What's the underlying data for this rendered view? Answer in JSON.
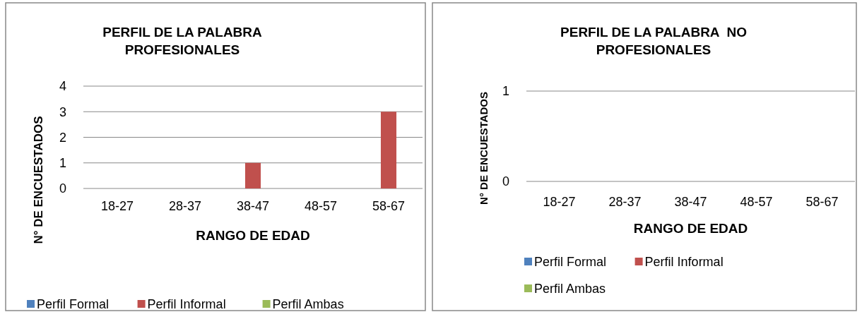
{
  "chart_data": [
    {
      "type": "bar",
      "title": "PERFIL DE LA PALABRA PROFESIONALES",
      "xlabel": "RANGO DE EDAD",
      "ylabel": "N° DE ENCUESTADOS",
      "categories": [
        "18-27",
        "28-37",
        "38-47",
        "48-57",
        "58-67"
      ],
      "series": [
        {
          "name": "Perfil Formal",
          "color": "#4f81bd",
          "values": [
            0,
            0,
            0,
            0,
            0
          ]
        },
        {
          "name": "Perfil Informal",
          "color": "#c0504d",
          "values": [
            0,
            0,
            1,
            0,
            3
          ]
        },
        {
          "name": "Perfil Ambas",
          "color": "#9bbb59",
          "values": [
            0,
            0,
            0,
            0,
            0
          ]
        }
      ],
      "ylim": [
        0,
        4
      ],
      "yticks": [
        0,
        1,
        2,
        3,
        4
      ],
      "grid": "y",
      "legend": "bottom"
    },
    {
      "type": "bar",
      "title": "PERFIL DE LA PALABRA  NO PROFESIONALES",
      "xlabel": "RANGO DE EDAD",
      "ylabel": "N° DE ENCUESTADOS",
      "categories": [
        "18-27",
        "28-37",
        "38-47",
        "48-57",
        "58-67"
      ],
      "series": [
        {
          "name": "Perfil Formal",
          "color": "#4f81bd",
          "values": [
            0,
            0,
            0,
            0,
            0
          ]
        },
        {
          "name": "Perfil Informal",
          "color": "#c0504d",
          "values": [
            0,
            0,
            0,
            0,
            0
          ]
        },
        {
          "name": "Perfil Ambas",
          "color": "#9bbb59",
          "values": [
            0,
            0,
            0,
            0,
            0
          ]
        }
      ],
      "ylim": [
        0,
        1
      ],
      "yticks": [
        0,
        1
      ],
      "grid": "y",
      "legend": "bottom"
    }
  ]
}
